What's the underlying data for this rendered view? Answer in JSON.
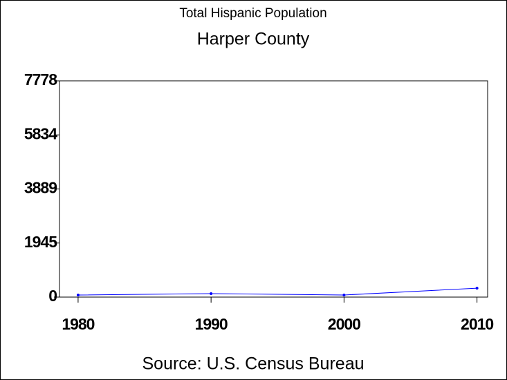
{
  "chart_data": {
    "type": "line",
    "title": "Total Hispanic Population",
    "subtitle": "Harper County",
    "source": "Source: U.S. Census Bureau",
    "x": [
      1980,
      1990,
      2000,
      2010
    ],
    "series": [
      {
        "color": "#0000ff",
        "values": [
          75,
          125,
          75,
          320
        ]
      }
    ],
    "xlim": [
      1978.6,
      2010.8
    ],
    "xticks": [
      1980,
      1990,
      2000,
      2010
    ],
    "ylim": [
      0,
      7778
    ],
    "yticks": [
      0,
      1945,
      3889,
      5834,
      7778
    ]
  }
}
